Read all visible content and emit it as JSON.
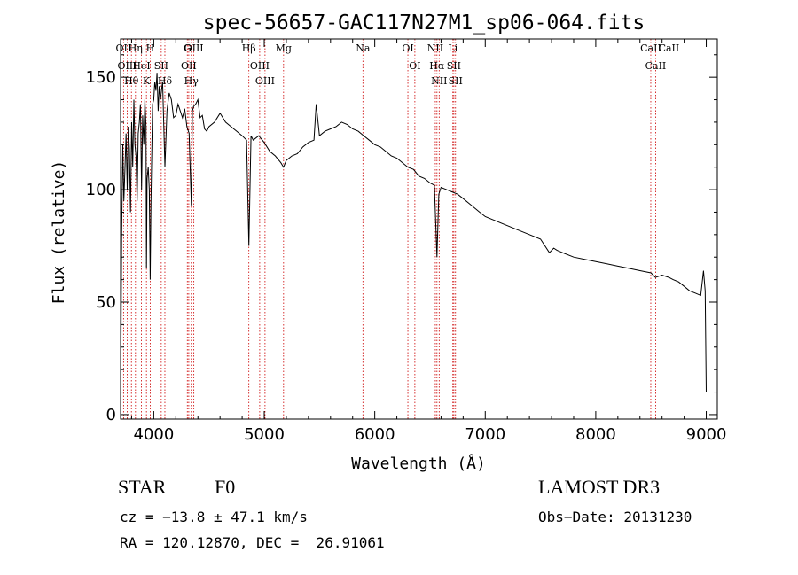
{
  "chart_data": {
    "type": "line",
    "title": "spec-56657-GAC117N27M1_sp06-064.fits",
    "xlabel": "Wavelength (Å)",
    "ylabel": "Flux (relative)",
    "xlim": [
      3700,
      9100
    ],
    "ylim": [
      -2,
      167
    ],
    "x_ticks": [
      4000,
      5000,
      6000,
      7000,
      8000,
      9000
    ],
    "y_ticks": [
      0,
      50,
      100,
      150
    ],
    "grid": false,
    "colors": {
      "spectrum": "#000000",
      "line_markers": "#cc0000"
    },
    "series": [
      {
        "name": "spectrum",
        "x": [
          3700,
          3710,
          3720,
          3730,
          3740,
          3750,
          3760,
          3770,
          3780,
          3790,
          3800,
          3810,
          3820,
          3830,
          3840,
          3850,
          3860,
          3870,
          3880,
          3890,
          3900,
          3910,
          3920,
          3930,
          3934,
          3940,
          3950,
          3960,
          3968,
          3975,
          3990,
          4000,
          4010,
          4020,
          4030,
          4040,
          4050,
          4060,
          4080,
          4101,
          4120,
          4140,
          4160,
          4180,
          4200,
          4220,
          4240,
          4260,
          4280,
          4300,
          4320,
          4340,
          4350,
          4360,
          4380,
          4400,
          4420,
          4440,
          4460,
          4480,
          4500,
          4550,
          4600,
          4650,
          4700,
          4750,
          4800,
          4840,
          4861,
          4880,
          4900,
          4950,
          5000,
          5050,
          5100,
          5150,
          5175,
          5200,
          5250,
          5300,
          5350,
          5400,
          5450,
          5470,
          5500,
          5550,
          5600,
          5650,
          5700,
          5750,
          5800,
          5850,
          5900,
          5950,
          6000,
          6050,
          6100,
          6150,
          6200,
          6250,
          6300,
          6350,
          6400,
          6450,
          6500,
          6540,
          6563,
          6580,
          6600,
          6650,
          6700,
          6750,
          6800,
          6850,
          6900,
          6950,
          7000,
          7100,
          7200,
          7300,
          7400,
          7500,
          7580,
          7620,
          7650,
          7700,
          7800,
          7900,
          8000,
          8100,
          8200,
          8300,
          8400,
          8500,
          8540,
          8600,
          8662,
          8700,
          8750,
          8800,
          8850,
          8900,
          8950,
          8975,
          8990,
          9000
        ],
        "y": [
          0,
          80,
          120,
          95,
          110,
          125,
          100,
          128,
          118,
          90,
          130,
          110,
          140,
          120,
          115,
          95,
          125,
          130,
          138,
          100,
          133,
          120,
          140,
          128,
          65,
          105,
          110,
          100,
          60,
          95,
          138,
          140,
          148,
          144,
          152,
          135,
          146,
          140,
          148,
          110,
          135,
          143,
          140,
          132,
          133,
          138,
          135,
          132,
          136,
          128,
          125,
          93,
          135,
          137,
          138,
          140,
          132,
          133,
          127,
          126,
          128,
          130,
          134,
          130,
          128,
          126,
          124,
          122,
          75,
          124,
          122,
          124,
          121,
          117,
          115,
          112,
          110,
          113,
          115,
          116,
          119,
          121,
          122,
          138,
          124,
          126,
          127,
          128,
          130,
          129,
          127,
          126,
          124,
          122,
          120,
          119,
          117,
          115,
          114,
          112,
          110,
          109,
          106,
          105,
          103,
          102,
          70,
          98,
          101,
          100,
          99,
          98,
          96,
          94,
          92,
          90,
          88,
          86,
          84,
          82,
          80,
          78,
          72,
          74,
          73,
          72,
          70,
          69,
          68,
          67,
          66,
          65,
          64,
          63,
          61,
          62,
          61,
          60,
          59,
          57,
          55,
          54,
          53,
          64,
          55,
          10
        ]
      }
    ],
    "line_markers": [
      {
        "label": "Hθ",
        "x": 3798
      },
      {
        "label": "OII",
        "x": 3727
      },
      {
        "label": "OIII",
        "x": 3760
      },
      {
        "label": "Hη",
        "x": 3835
      },
      {
        "label": "HeI",
        "x": 3889
      },
      {
        "label": "K",
        "x": 3934
      },
      {
        "label": "H",
        "x": 3968
      },
      {
        "label": "SII",
        "x": 4068
      },
      {
        "label": "Hδ",
        "x": 4101
      },
      {
        "label": "G",
        "x": 4304
      },
      {
        "label": "OII",
        "x": 4317
      },
      {
        "label": "Hγ",
        "x": 4340
      },
      {
        "label": "OIII",
        "x": 4363
      },
      {
        "label": "Hβ",
        "x": 4861
      },
      {
        "label": "OIII",
        "x": 4959
      },
      {
        "label": "OIII",
        "x": 5007
      },
      {
        "label": "Mg",
        "x": 5175
      },
      {
        "label": "Na",
        "x": 5893
      },
      {
        "label": "OI",
        "x": 6300
      },
      {
        "label": "OI",
        "x": 6363
      },
      {
        "label": "NII",
        "x": 6548
      },
      {
        "label": "Hα",
        "x": 6563
      },
      {
        "label": "NII",
        "x": 6583
      },
      {
        "label": "Li",
        "x": 6707
      },
      {
        "label": "SII",
        "x": 6716
      },
      {
        "label": "SII",
        "x": 6731
      },
      {
        "label": "CaII",
        "x": 8498
      },
      {
        "label": "CaII",
        "x": 8542
      },
      {
        "label": "CaII",
        "x": 8662
      }
    ]
  },
  "info": {
    "object_class": "STAR",
    "spectral_type": "F0",
    "survey": "LAMOST DR3",
    "redshift_line": "cz = −13.8 ± 47.1 km/s",
    "obs_date": "Obs−Date: 20131230",
    "coords": "RA = 120.12870, DEC =  26.91061"
  }
}
